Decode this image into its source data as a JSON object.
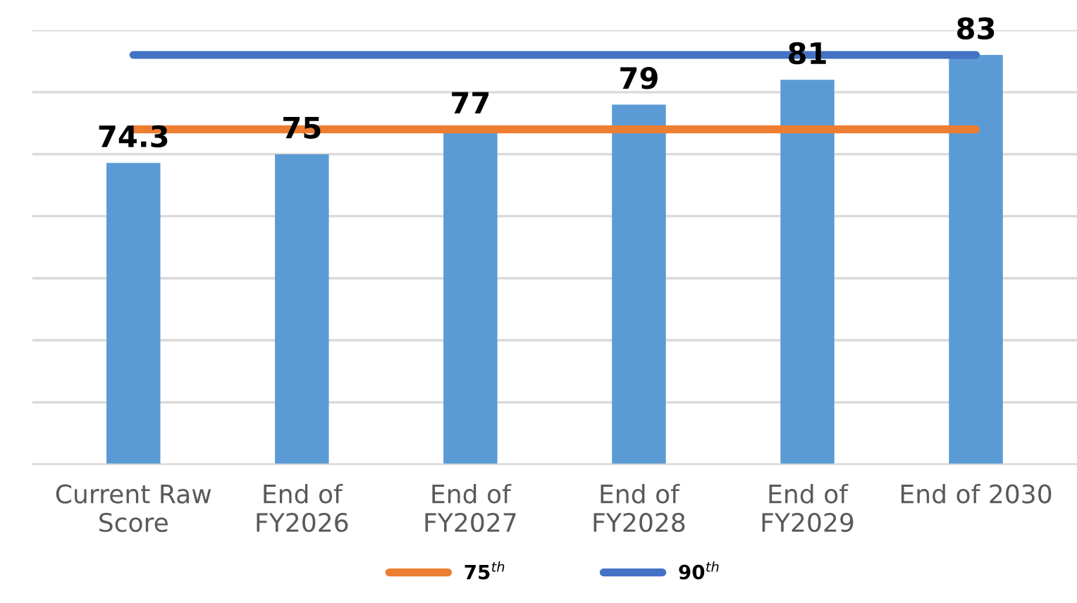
{
  "chart_data": {
    "type": "bar",
    "categories": [
      "Current Raw\nScore",
      "End of\nFY2026",
      "End of\nFY2027",
      "End of\nFY2028",
      "End of\nFY2029",
      "End of 2030"
    ],
    "series": [
      {
        "color": "#5b9bd5",
        "values": [
          74.3,
          75,
          77,
          79,
          81,
          83
        ],
        "data_labels": true
      },
      {
        "type": "line",
        "name": "75$^{th}$",
        "color": "#ed7d31",
        "values": [
          77,
          77,
          77,
          77,
          77,
          77
        ]
      },
      {
        "type": "line",
        "name": "90$^{th}$",
        "color": "#4472c4",
        "values": [
          83,
          83,
          83,
          83,
          83,
          83
        ]
      }
    ],
    "ylim": [
      50,
      85
    ],
    "yticks": [
      {
        "value": 50,
        "label": null
      },
      {
        "value": 55,
        "label": null
      },
      {
        "value": 60,
        "label": null
      },
      {
        "value": 65,
        "label": null
      },
      {
        "value": 70,
        "label": null
      },
      {
        "value": 75,
        "label": null
      },
      {
        "value": 80,
        "label": null
      },
      {
        "value": 85,
        "label": null
      }
    ],
    "tick_labels": "x",
    "grid": "y",
    "legend": "bottom",
    "marker": "none",
    "line_style": "solid"
  }
}
